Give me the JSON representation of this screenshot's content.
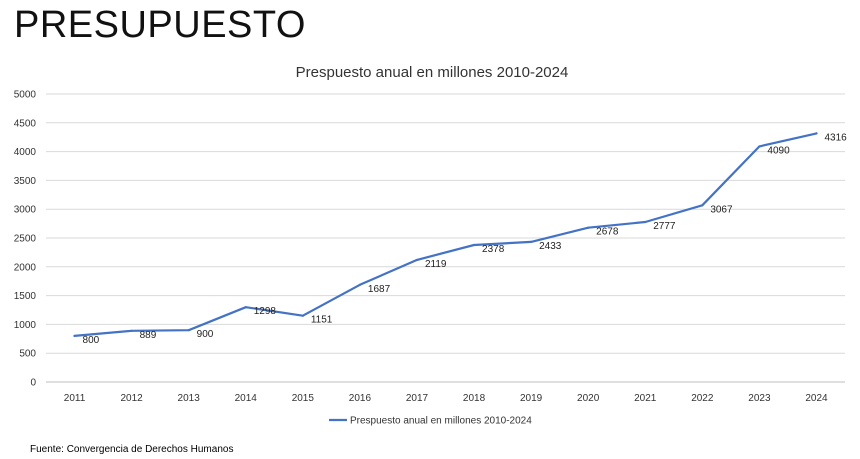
{
  "page_title": "PRESUPUESTO",
  "source": "Fuente: Convergencia de Derechos Humanos",
  "chart_data": {
    "type": "line",
    "title": "Prespuesto anual en millones 2010-2024",
    "x": [
      "2011",
      "2012",
      "2013",
      "2014",
      "2015",
      "2016",
      "2017",
      "2018",
      "2019",
      "2020",
      "2021",
      "2022",
      "2023",
      "2024"
    ],
    "series": [
      {
        "name": "Prespuesto anual en millones 2010-2024",
        "values": [
          800,
          889,
          900,
          1298,
          1151,
          1687,
          2119,
          2378,
          2433,
          2678,
          2777,
          3067,
          4090,
          4316
        ],
        "color": "#4472c4"
      }
    ],
    "yticks": [
      "0",
      "500",
      "1000",
      "1500",
      "2000",
      "2500",
      "3000",
      "3500",
      "4000",
      "4500",
      "5000"
    ],
    "ylim": [
      0,
      5000
    ],
    "grid": true,
    "legend_position": "bottom"
  }
}
